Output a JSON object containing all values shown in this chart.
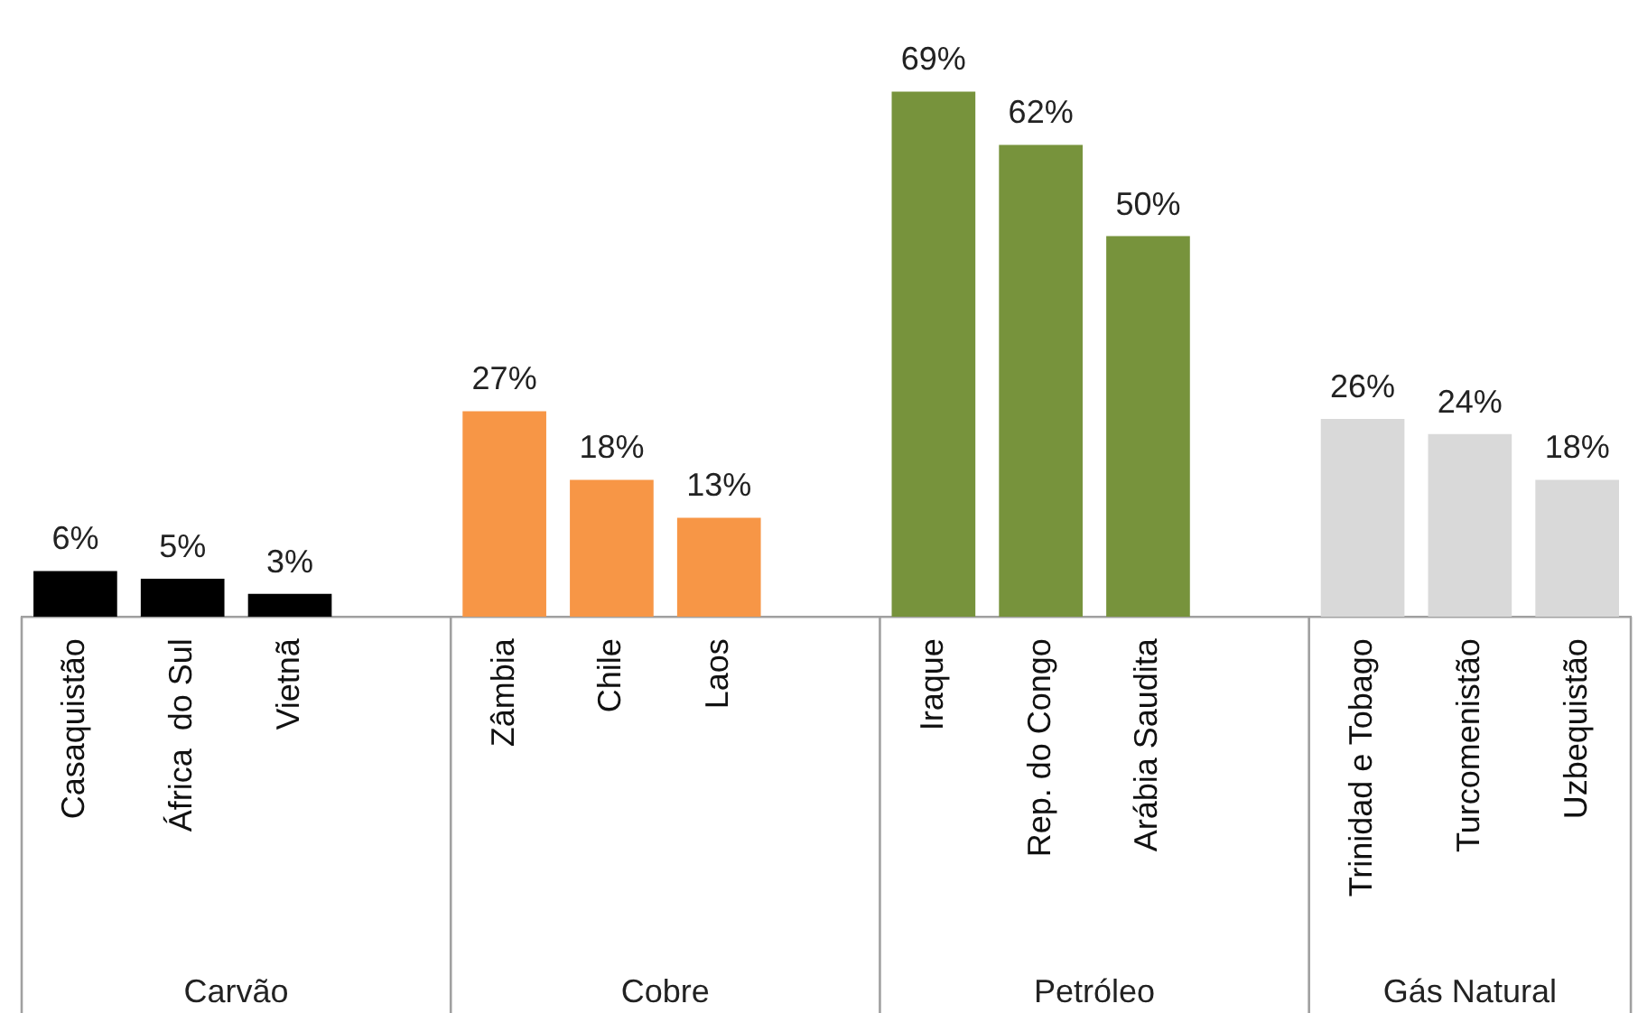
{
  "chart_data": {
    "type": "bar",
    "categories": [
      "Casaquistão",
      "África  do Sul",
      "Vietnã",
      "Zâmbia",
      "Chile",
      "Laos",
      "Iraque",
      "Rep. do Congo",
      "Arábia Saudita",
      "Trinidad e Tobago",
      "Turcomenistão",
      "Uzbequistão"
    ],
    "values": [
      6,
      5,
      3,
      27,
      18,
      13,
      69,
      62,
      50,
      26,
      24,
      18
    ],
    "value_labels": [
      "6%",
      "5%",
      "3%",
      "27%",
      "18%",
      "13%",
      "69%",
      "62%",
      "50%",
      "26%",
      "24%",
      "18%"
    ],
    "colors": [
      "#000000",
      "#000000",
      "#000000",
      "#f79646",
      "#f79646",
      "#f79646",
      "#77933c",
      "#77933c",
      "#77933c",
      "#d9d9d9",
      "#d9d9d9",
      "#d9d9d9"
    ],
    "annotations": [
      "Carvão",
      "Cobre",
      "Petróleo",
      "Gás Natural"
    ],
    "legend": false,
    "grid": false
  }
}
